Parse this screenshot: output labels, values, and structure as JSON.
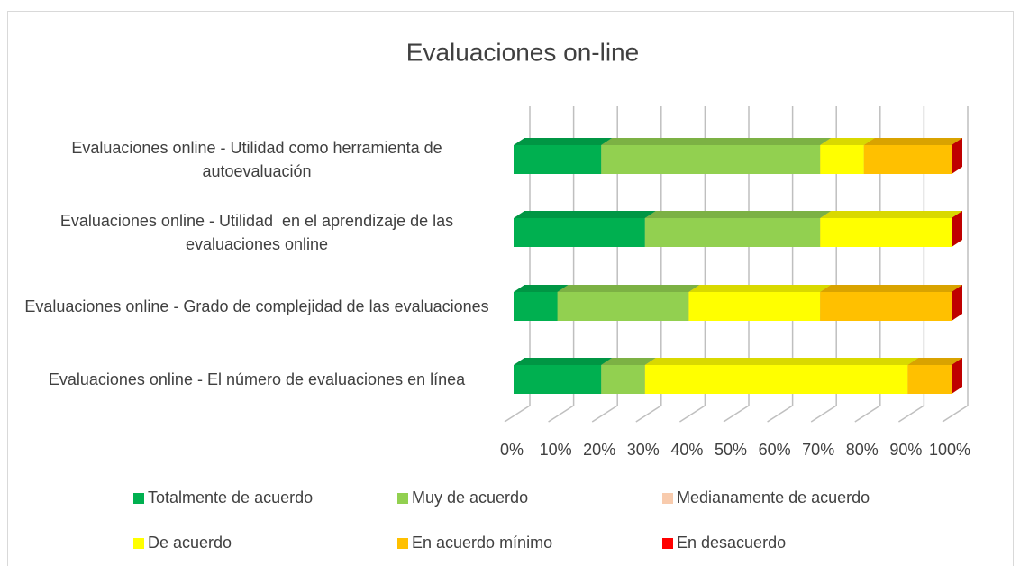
{
  "chart_data": {
    "type": "bar3d_stacked_horizontal",
    "title": "Evaluaciones on-line",
    "categories": [
      "Evaluaciones online - Utilidad como herramienta de autoevaluación",
      "Evaluaciones online - Utilidad  en el aprendizaje de las evaluaciones online",
      "Evaluaciones online - Grado de complejidad de las evaluaciones",
      "Evaluaciones online - El número de evaluaciones en línea"
    ],
    "series": [
      {
        "name": "Totalmente de acuerdo",
        "color": "#00b050",
        "values": [
          20,
          30,
          10,
          20
        ]
      },
      {
        "name": "Muy de acuerdo",
        "color": "#92d050",
        "values": [
          50,
          40,
          30,
          10
        ]
      },
      {
        "name": "Medianamente de acuerdo",
        "color": "#f8cbad",
        "values": [
          0,
          0,
          0,
          0
        ]
      },
      {
        "name": "De acuerdo",
        "color": "#ffff00",
        "values": [
          10,
          30,
          30,
          60
        ]
      },
      {
        "name": "En acuerdo mínimo",
        "color": "#ffc000",
        "values": [
          20,
          0,
          30,
          10
        ]
      },
      {
        "name": "En desacuerdo",
        "color": "#ff0000",
        "values": [
          0,
          0,
          0,
          0
        ]
      }
    ],
    "xlim": [
      0,
      100
    ],
    "xticks": [
      {
        "value": 0,
        "label": "0%"
      },
      {
        "value": 10,
        "label": "10%"
      },
      {
        "value": 20,
        "label": "20%"
      },
      {
        "value": 30,
        "label": "30%"
      },
      {
        "value": 40,
        "label": "40%"
      },
      {
        "value": 50,
        "label": "50%"
      },
      {
        "value": 60,
        "label": "60%"
      },
      {
        "value": 70,
        "label": "70%"
      },
      {
        "value": 80,
        "label": "80%"
      },
      {
        "value": 90,
        "label": "90%"
      },
      {
        "value": 100,
        "label": "100%"
      }
    ],
    "grid": true,
    "legend": "bottom"
  }
}
